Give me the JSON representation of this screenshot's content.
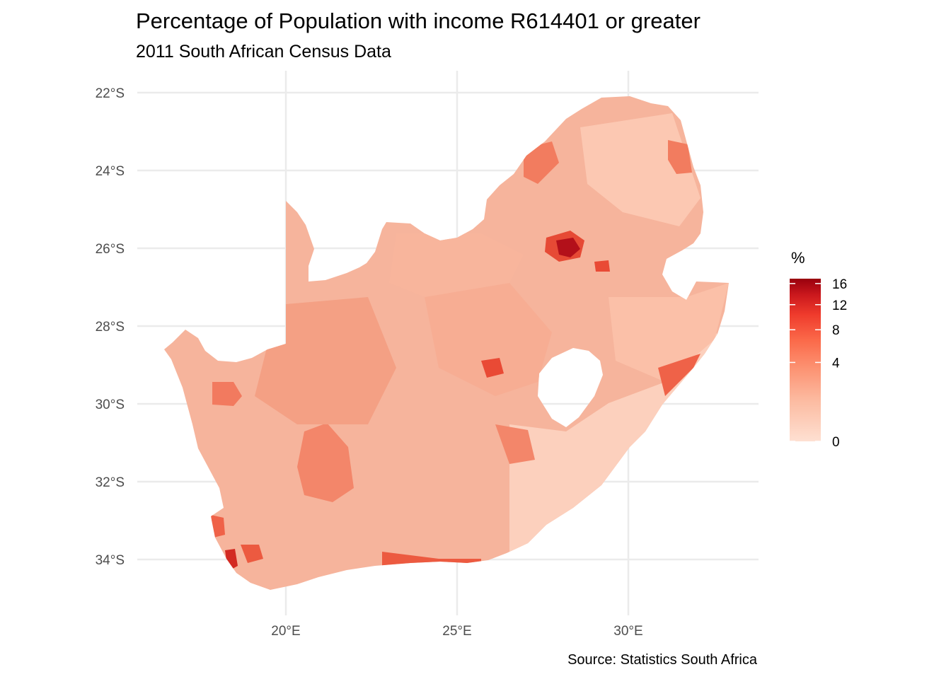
{
  "title": "Percentage of Population with income R614401 or greater",
  "subtitle": "2011 South African Census Data",
  "caption": "Source: Statistics South Africa",
  "chart_data": {
    "type": "choropleth",
    "x_ticks": [
      "20°E",
      "25°E",
      "30°E"
    ],
    "x_tick_values": [
      20,
      25,
      30
    ],
    "y_ticks": [
      "22°S",
      "24°S",
      "26°S",
      "28°S",
      "30°S",
      "32°S",
      "34°S"
    ],
    "y_tick_values": [
      -22,
      -24,
      -26,
      -28,
      -30,
      -32,
      -34
    ],
    "grid": true,
    "legend": {
      "title": "%",
      "position": "right",
      "breaks": [
        "16",
        "12",
        "8",
        "4",
        "0"
      ],
      "break_values": [
        16,
        12,
        8,
        4,
        0
      ],
      "range": [
        0,
        17
      ],
      "colors": [
        "#fee0d2",
        "#fcbba1",
        "#fc9272",
        "#fb6a4a",
        "#ef3b2c",
        "#cb181d",
        "#99000d"
      ]
    }
  },
  "colors": {
    "grid": "#ebebeb",
    "land_base": "#f6b49c",
    "hot_spot": "#cb181d"
  }
}
